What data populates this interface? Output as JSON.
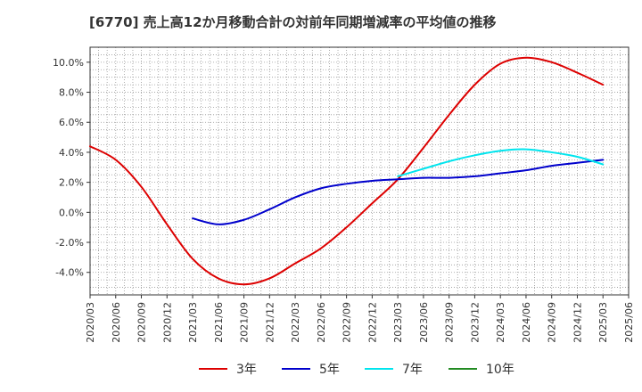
{
  "chart_data": {
    "type": "line",
    "title": "[6770]  売上高12か月移動合計の対前年同期増減率の平均値の推移",
    "xlabel": "",
    "ylabel": "",
    "x_ticks": [
      "2020/03",
      "2020/06",
      "2020/09",
      "2020/12",
      "2021/03",
      "2021/06",
      "2021/09",
      "2021/12",
      "2022/03",
      "2022/06",
      "2022/09",
      "2022/12",
      "2023/03",
      "2023/06",
      "2023/09",
      "2023/12",
      "2024/03",
      "2024/06",
      "2024/09",
      "2024/12",
      "2025/03",
      "2025/06"
    ],
    "y_ticks": [
      "-4.0%",
      "-2.0%",
      "0.0%",
      "2.0%",
      "4.0%",
      "6.0%",
      "8.0%",
      "10.0%"
    ],
    "ylim": [
      -5.5,
      11.0
    ],
    "grid": true,
    "legend_position": "bottom",
    "series": [
      {
        "name": "3年",
        "color": "#dd0000",
        "points": [
          [
            "2020/03",
            4.4
          ],
          [
            "2020/06",
            3.5
          ],
          [
            "2020/09",
            1.7
          ],
          [
            "2020/12",
            -0.8
          ],
          [
            "2021/03",
            -3.1
          ],
          [
            "2021/06",
            -4.4
          ],
          [
            "2021/09",
            -4.8
          ],
          [
            "2021/12",
            -4.4
          ],
          [
            "2022/03",
            -3.4
          ],
          [
            "2022/06",
            -2.4
          ],
          [
            "2022/09",
            -1.0
          ],
          [
            "2022/12",
            0.6
          ],
          [
            "2023/03",
            2.2
          ],
          [
            "2023/06",
            4.3
          ],
          [
            "2023/09",
            6.5
          ],
          [
            "2023/12",
            8.5
          ],
          [
            "2024/03",
            9.9
          ],
          [
            "2024/06",
            10.3
          ],
          [
            "2024/09",
            10.0
          ],
          [
            "2024/12",
            9.3
          ],
          [
            "2025/03",
            8.5
          ]
        ]
      },
      {
        "name": "5年",
        "color": "#0000cc",
        "points": [
          [
            "2021/03",
            -0.4
          ],
          [
            "2021/06",
            -0.8
          ],
          [
            "2021/09",
            -0.5
          ],
          [
            "2021/12",
            0.2
          ],
          [
            "2022/03",
            1.0
          ],
          [
            "2022/06",
            1.6
          ],
          [
            "2022/09",
            1.9
          ],
          [
            "2022/12",
            2.1
          ],
          [
            "2023/03",
            2.2
          ],
          [
            "2023/06",
            2.3
          ],
          [
            "2023/09",
            2.3
          ],
          [
            "2023/12",
            2.4
          ],
          [
            "2024/03",
            2.6
          ],
          [
            "2024/06",
            2.8
          ],
          [
            "2024/09",
            3.1
          ],
          [
            "2024/12",
            3.3
          ],
          [
            "2025/03",
            3.5
          ]
        ]
      },
      {
        "name": "7年",
        "color": "#00e5ee",
        "points": [
          [
            "2023/03",
            2.4
          ],
          [
            "2023/06",
            2.9
          ],
          [
            "2023/09",
            3.4
          ],
          [
            "2023/12",
            3.8
          ],
          [
            "2024/03",
            4.1
          ],
          [
            "2024/06",
            4.2
          ],
          [
            "2024/09",
            4.0
          ],
          [
            "2024/12",
            3.7
          ],
          [
            "2025/03",
            3.2
          ]
        ]
      },
      {
        "name": "10年",
        "color": "#228b22",
        "points": []
      }
    ]
  }
}
